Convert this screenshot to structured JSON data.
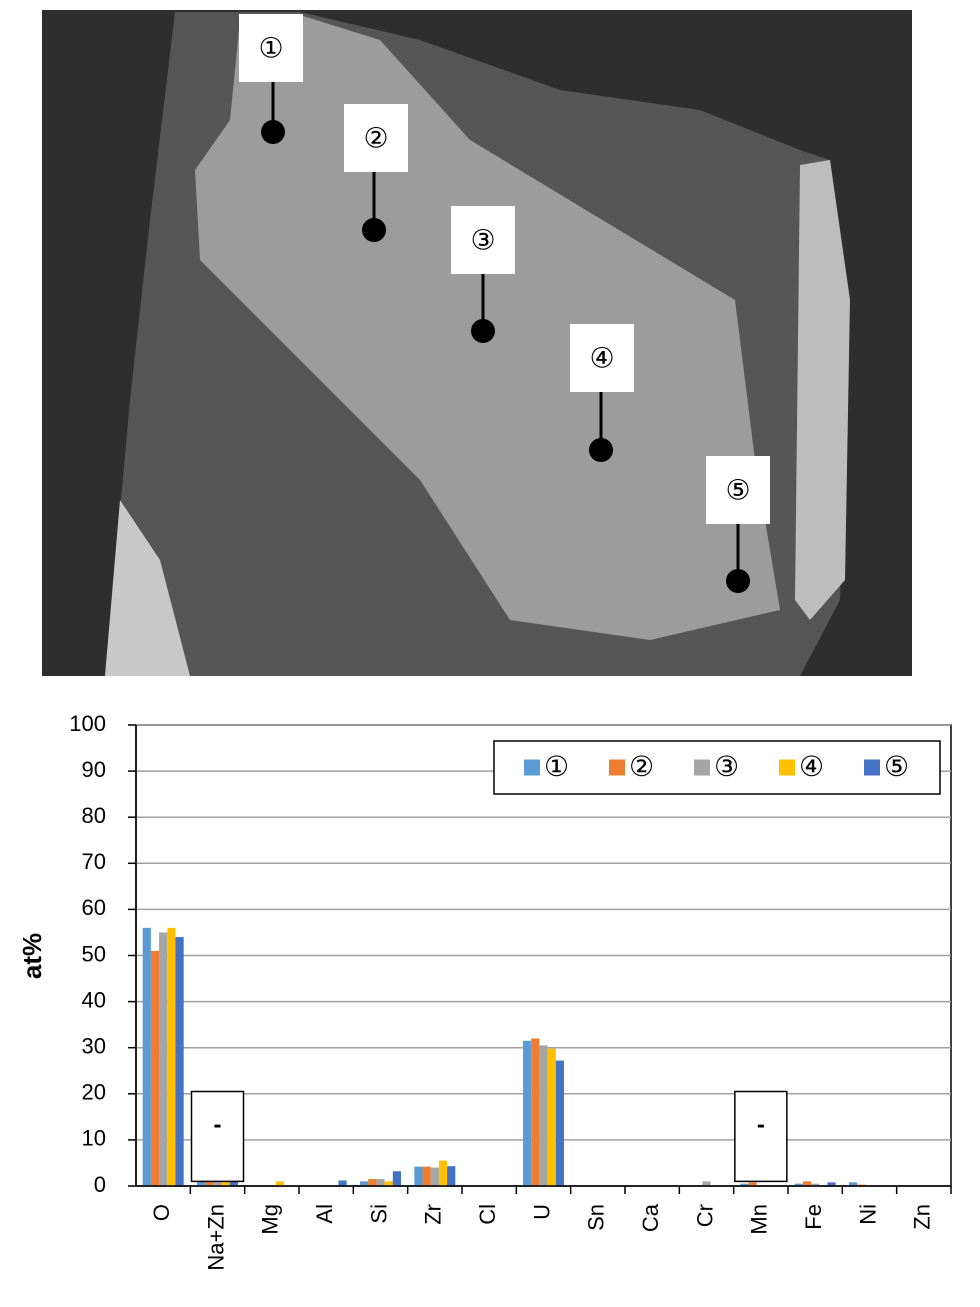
{
  "image_labels": [
    "①",
    "②",
    "③",
    "④",
    "⑤"
  ],
  "chart_data": {
    "type": "bar",
    "ylabel": "at%",
    "categories": [
      "O",
      "Na+Zn",
      "Mg",
      "Al",
      "Si",
      "Zr",
      "Cl",
      "U",
      "Sn",
      "Ca",
      "Cr",
      "Mn",
      "Fe",
      "Ni",
      "Zn"
    ],
    "series": [
      {
        "name": "①",
        "color": "#5b9bd5",
        "values": [
          56,
          1,
          0,
          0,
          1,
          4.2,
          0,
          31.5,
          0,
          0,
          0,
          0.5,
          0.5,
          0.8,
          0
        ]
      },
      {
        "name": "②",
        "color": "#ed7d31",
        "values": [
          51,
          1,
          0,
          0,
          1.5,
          4.2,
          0,
          32,
          0,
          0,
          0,
          0.8,
          1,
          0.3,
          0
        ]
      },
      {
        "name": "③",
        "color": "#a5a5a5",
        "values": [
          55,
          1,
          0,
          0,
          1.5,
          4,
          0,
          30.5,
          0,
          0,
          1,
          0,
          0.5,
          0,
          0
        ]
      },
      {
        "name": "④",
        "color": "#ffc000",
        "values": [
          56,
          1,
          1,
          0,
          1,
          5.5,
          0,
          29.8,
          0,
          0,
          0,
          0,
          0,
          0,
          0
        ]
      },
      {
        "name": "⑤",
        "color": "#4472c4",
        "values": [
          54,
          1,
          0,
          1.2,
          3.2,
          4.3,
          0,
          27.2,
          0,
          0,
          0,
          0,
          0.8,
          0,
          0
        ]
      }
    ],
    "ylim": [
      0,
      100
    ],
    "yticks": [
      0,
      10,
      20,
      30,
      40,
      50,
      60,
      70,
      80,
      90,
      100
    ],
    "grid": true,
    "legend": "top-right",
    "annotations": [
      {
        "text": "-",
        "category": "Na+Zn"
      },
      {
        "text": "-",
        "category": "Mn"
      }
    ]
  }
}
